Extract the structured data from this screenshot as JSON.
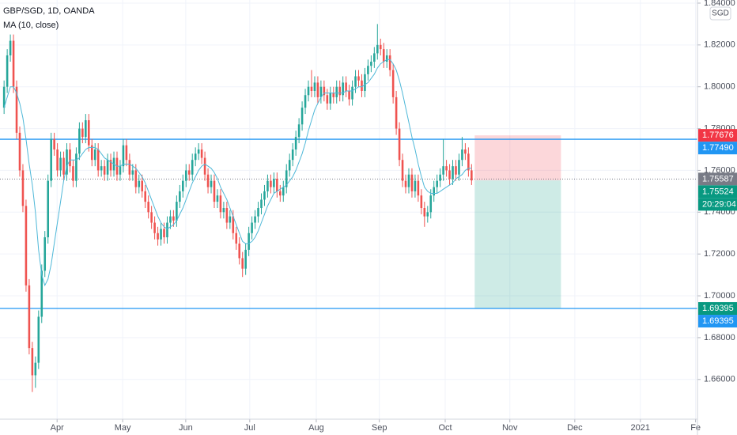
{
  "chart_data": {
    "type": "candlestick",
    "title": "GBP/SGD, 1D, OANDA",
    "indicator": "MA (10, close)",
    "currency": "SGD",
    "up_color": "#26a69a",
    "down_color": "#ef5350",
    "ma_color": "#4fb8d8",
    "grid": true,
    "xlim": [
      -1.3,
      221
    ],
    "ylim": [
      1.641,
      1.8415
    ],
    "yticks": [
      {
        "value": 1.66,
        "label": "1.66000"
      },
      {
        "value": 1.68,
        "label": "1.68000"
      },
      {
        "value": 1.7,
        "label": "1.70000"
      },
      {
        "value": 1.72,
        "label": "1.72000"
      },
      {
        "value": 1.74,
        "label": "1.74000"
      },
      {
        "value": 1.76,
        "label": "1.76000"
      },
      {
        "value": 1.78,
        "label": "1.78000"
      },
      {
        "value": 1.8,
        "label": "1.80000"
      },
      {
        "value": 1.82,
        "label": "1.82000"
      },
      {
        "value": 1.84,
        "label": "1.84000"
      }
    ],
    "xticks": [
      {
        "value": 16.9,
        "label": "Apr"
      },
      {
        "value": 37.8,
        "label": "May"
      },
      {
        "value": 57.9,
        "label": "Jun"
      },
      {
        "value": 78.3,
        "label": "Jul"
      },
      {
        "value": 99.5,
        "label": "Aug"
      },
      {
        "value": 119.6,
        "label": "Sep"
      },
      {
        "value": 140.6,
        "label": "Oct"
      },
      {
        "value": 161.2,
        "label": "Nov"
      },
      {
        "value": 181.9,
        "label": "Dec"
      },
      {
        "value": 202.8,
        "label": "2021"
      },
      {
        "value": 220.4,
        "label": "Fe"
      }
    ],
    "ohlc": [
      [
        1.79,
        1.803,
        1.787,
        1.8
      ],
      [
        1.8,
        1.818,
        1.797,
        1.815
      ],
      [
        1.815,
        1.825,
        1.812,
        1.822
      ],
      [
        1.822,
        1.825,
        1.797,
        1.8
      ],
      [
        1.8,
        1.803,
        1.775,
        1.778
      ],
      [
        1.778,
        1.781,
        1.757,
        1.76
      ],
      [
        1.76,
        1.763,
        1.74,
        1.743
      ],
      [
        1.743,
        1.746,
        1.702,
        1.705
      ],
      [
        1.705,
        1.708,
        1.672,
        1.675
      ],
      [
        1.675,
        1.678,
        1.654,
        1.662
      ],
      [
        1.662,
        1.671,
        1.656,
        1.668
      ],
      [
        1.668,
        1.693,
        1.665,
        1.69
      ],
      [
        1.69,
        1.715,
        1.687,
        1.712
      ],
      [
        1.712,
        1.731,
        1.709,
        1.728
      ],
      [
        1.728,
        1.758,
        1.725,
        1.755
      ],
      [
        1.755,
        1.778,
        1.752,
        1.775
      ],
      [
        1.775,
        1.778,
        1.767,
        1.77
      ],
      [
        1.77,
        1.773,
        1.757,
        1.76
      ],
      [
        1.76,
        1.769,
        1.757,
        1.766
      ],
      [
        1.766,
        1.769,
        1.755,
        1.758
      ],
      [
        1.758,
        1.773,
        1.755,
        1.77
      ],
      [
        1.77,
        1.773,
        1.759,
        1.762
      ],
      [
        1.762,
        1.765,
        1.752,
        1.755
      ],
      [
        1.755,
        1.771,
        1.752,
        1.768
      ],
      [
        1.768,
        1.783,
        1.765,
        1.78
      ],
      [
        1.78,
        1.783,
        1.773,
        1.776
      ],
      [
        1.776,
        1.787,
        1.773,
        1.784
      ],
      [
        1.784,
        1.787,
        1.769,
        1.772
      ],
      [
        1.772,
        1.775,
        1.762,
        1.765
      ],
      [
        1.765,
        1.773,
        1.762,
        1.77
      ],
      [
        1.77,
        1.773,
        1.757,
        1.76
      ],
      [
        1.76,
        1.765,
        1.757,
        1.762
      ],
      [
        1.762,
        1.765,
        1.755,
        1.758
      ],
      [
        1.758,
        1.768,
        1.755,
        1.765
      ],
      [
        1.765,
        1.768,
        1.757,
        1.76
      ],
      [
        1.76,
        1.769,
        1.757,
        1.766
      ],
      [
        1.766,
        1.769,
        1.755,
        1.758
      ],
      [
        1.758,
        1.765,
        1.755,
        1.762
      ],
      [
        1.762,
        1.775,
        1.759,
        1.772
      ],
      [
        1.772,
        1.775,
        1.762,
        1.765
      ],
      [
        1.765,
        1.768,
        1.755,
        1.758
      ],
      [
        1.758,
        1.763,
        1.755,
        1.76
      ],
      [
        1.76,
        1.763,
        1.749,
        1.752
      ],
      [
        1.752,
        1.758,
        1.749,
        1.755
      ],
      [
        1.755,
        1.758,
        1.747,
        1.75
      ],
      [
        1.75,
        1.753,
        1.742,
        1.745
      ],
      [
        1.745,
        1.748,
        1.737,
        1.74
      ],
      [
        1.74,
        1.743,
        1.732,
        1.735
      ],
      [
        1.735,
        1.738,
        1.727,
        1.73
      ],
      [
        1.73,
        1.733,
        1.724,
        1.727
      ],
      [
        1.727,
        1.735,
        1.724,
        1.732
      ],
      [
        1.732,
        1.735,
        1.725,
        1.728
      ],
      [
        1.728,
        1.738,
        1.725,
        1.735
      ],
      [
        1.735,
        1.741,
        1.732,
        1.738
      ],
      [
        1.738,
        1.741,
        1.733,
        1.736
      ],
      [
        1.736,
        1.748,
        1.733,
        1.745
      ],
      [
        1.745,
        1.753,
        1.742,
        1.75
      ],
      [
        1.75,
        1.758,
        1.747,
        1.755
      ],
      [
        1.755,
        1.763,
        1.752,
        1.76
      ],
      [
        1.76,
        1.763,
        1.755,
        1.758
      ],
      [
        1.758,
        1.768,
        1.755,
        1.765
      ],
      [
        1.765,
        1.771,
        1.762,
        1.768
      ],
      [
        1.768,
        1.773,
        1.765,
        1.77
      ],
      [
        1.77,
        1.773,
        1.763,
        1.766
      ],
      [
        1.766,
        1.769,
        1.755,
        1.758
      ],
      [
        1.758,
        1.761,
        1.749,
        1.752
      ],
      [
        1.752,
        1.758,
        1.749,
        1.755
      ],
      [
        1.755,
        1.758,
        1.742,
        1.745
      ],
      [
        1.745,
        1.751,
        1.742,
        1.748
      ],
      [
        1.748,
        1.751,
        1.737,
        1.74
      ],
      [
        1.74,
        1.745,
        1.737,
        1.742
      ],
      [
        1.742,
        1.745,
        1.732,
        1.735
      ],
      [
        1.735,
        1.741,
        1.732,
        1.738
      ],
      [
        1.738,
        1.741,
        1.727,
        1.73
      ],
      [
        1.73,
        1.733,
        1.722,
        1.725
      ],
      [
        1.725,
        1.728,
        1.715,
        1.718
      ],
      [
        1.718,
        1.721,
        1.709,
        1.713
      ],
      [
        1.713,
        1.725,
        1.71,
        1.722
      ],
      [
        1.722,
        1.733,
        1.719,
        1.73
      ],
      [
        1.73,
        1.738,
        1.727,
        1.735
      ],
      [
        1.735,
        1.741,
        1.732,
        1.738
      ],
      [
        1.738,
        1.745,
        1.735,
        1.742
      ],
      [
        1.742,
        1.749,
        1.739,
        1.746
      ],
      [
        1.746,
        1.753,
        1.743,
        1.75
      ],
      [
        1.75,
        1.758,
        1.747,
        1.755
      ],
      [
        1.755,
        1.758,
        1.749,
        1.752
      ],
      [
        1.752,
        1.759,
        1.749,
        1.756
      ],
      [
        1.756,
        1.759,
        1.747,
        1.75
      ],
      [
        1.75,
        1.753,
        1.745,
        1.748
      ],
      [
        1.748,
        1.755,
        1.745,
        1.752
      ],
      [
        1.752,
        1.763,
        1.749,
        1.76
      ],
      [
        1.76,
        1.768,
        1.757,
        1.765
      ],
      [
        1.765,
        1.773,
        1.762,
        1.77
      ],
      [
        1.77,
        1.779,
        1.767,
        1.776
      ],
      [
        1.776,
        1.785,
        1.773,
        1.782
      ],
      [
        1.782,
        1.793,
        1.779,
        1.79
      ],
      [
        1.79,
        1.799,
        1.787,
        1.796
      ],
      [
        1.796,
        1.803,
        1.793,
        1.8
      ],
      [
        1.8,
        1.808,
        1.795,
        1.798
      ],
      [
        1.798,
        1.805,
        1.795,
        1.802
      ],
      [
        1.802,
        1.805,
        1.792,
        1.795
      ],
      [
        1.795,
        1.803,
        1.792,
        1.8
      ],
      [
        1.8,
        1.803,
        1.793,
        1.796
      ],
      [
        1.796,
        1.799,
        1.789,
        1.792
      ],
      [
        1.792,
        1.8,
        1.789,
        1.797
      ],
      [
        1.797,
        1.8,
        1.792,
        1.795
      ],
      [
        1.795,
        1.803,
        1.792,
        1.8
      ],
      [
        1.8,
        1.803,
        1.793,
        1.796
      ],
      [
        1.796,
        1.805,
        1.793,
        1.802
      ],
      [
        1.802,
        1.805,
        1.795,
        1.798
      ],
      [
        1.798,
        1.801,
        1.791,
        1.794
      ],
      [
        1.794,
        1.803,
        1.791,
        1.8
      ],
      [
        1.8,
        1.808,
        1.797,
        1.805
      ],
      [
        1.805,
        1.808,
        1.8,
        1.803
      ],
      [
        1.803,
        1.806,
        1.795,
        1.798
      ],
      [
        1.798,
        1.809,
        1.795,
        1.806
      ],
      [
        1.806,
        1.813,
        1.803,
        1.81
      ],
      [
        1.81,
        1.815,
        1.807,
        1.812
      ],
      [
        1.812,
        1.819,
        1.809,
        1.816
      ],
      [
        1.816,
        1.83,
        1.813,
        1.82
      ],
      [
        1.82,
        1.823,
        1.815,
        1.818
      ],
      [
        1.818,
        1.821,
        1.809,
        1.812
      ],
      [
        1.812,
        1.818,
        1.809,
        1.815
      ],
      [
        1.815,
        1.818,
        1.805,
        1.808
      ],
      [
        1.808,
        1.811,
        1.792,
        1.795
      ],
      [
        1.795,
        1.798,
        1.777,
        1.78
      ],
      [
        1.78,
        1.783,
        1.762,
        1.765
      ],
      [
        1.765,
        1.768,
        1.752,
        1.755
      ],
      [
        1.755,
        1.758,
        1.749,
        1.752
      ],
      [
        1.752,
        1.761,
        1.749,
        1.758
      ],
      [
        1.758,
        1.761,
        1.747,
        1.75
      ],
      [
        1.75,
        1.758,
        1.747,
        1.755
      ],
      [
        1.755,
        1.758,
        1.745,
        1.748
      ],
      [
        1.748,
        1.751,
        1.739,
        1.742
      ],
      [
        1.742,
        1.745,
        1.733,
        1.738
      ],
      [
        1.738,
        1.743,
        1.735,
        1.74
      ],
      [
        1.74,
        1.751,
        1.737,
        1.748
      ],
      [
        1.748,
        1.755,
        1.745,
        1.752
      ],
      [
        1.752,
        1.758,
        1.749,
        1.755
      ],
      [
        1.755,
        1.761,
        1.752,
        1.758
      ],
      [
        1.758,
        1.775,
        1.755,
        1.762
      ],
      [
        1.762,
        1.765,
        1.757,
        1.76
      ],
      [
        1.76,
        1.763,
        1.753,
        1.756
      ],
      [
        1.756,
        1.765,
        1.753,
        1.762
      ],
      [
        1.762,
        1.765,
        1.755,
        1.758
      ],
      [
        1.758,
        1.768,
        1.755,
        1.765
      ],
      [
        1.765,
        1.776,
        1.762,
        1.77
      ],
      [
        1.77,
        1.773,
        1.765,
        1.768
      ],
      [
        1.768,
        1.771,
        1.757,
        1.76
      ],
      [
        1.76,
        1.763,
        1.753,
        1.7552
      ]
    ],
    "ma": [
      1.79,
      1.795,
      1.8,
      1.8,
      1.797,
      1.792,
      1.785,
      1.775,
      1.763,
      1.753,
      1.74,
      1.722,
      1.71,
      1.705,
      1.708,
      1.715,
      1.725,
      1.735,
      1.745,
      1.755,
      1.762,
      1.765,
      1.765,
      1.765,
      1.766,
      1.768,
      1.77,
      1.771,
      1.771,
      1.771,
      1.77,
      1.768,
      1.766,
      1.765,
      1.764,
      1.763,
      1.762,
      1.762,
      1.763,
      1.763,
      1.763,
      1.762,
      1.761,
      1.759,
      1.757,
      1.754,
      1.75,
      1.746,
      1.742,
      1.738,
      1.735,
      1.733,
      1.732,
      1.733,
      1.734,
      1.736,
      1.739,
      1.742,
      1.746,
      1.75,
      1.754,
      1.757,
      1.76,
      1.762,
      1.763,
      1.762,
      1.761,
      1.759,
      1.756,
      1.752,
      1.749,
      1.746,
      1.742,
      1.738,
      1.734,
      1.73,
      1.726,
      1.725,
      1.725,
      1.726,
      1.728,
      1.731,
      1.735,
      1.739,
      1.743,
      1.746,
      1.749,
      1.75,
      1.751,
      1.752,
      1.753,
      1.755,
      1.757,
      1.76,
      1.764,
      1.768,
      1.773,
      1.779,
      1.784,
      1.789,
      1.792,
      1.795,
      1.797,
      1.797,
      1.797,
      1.797,
      1.797,
      1.797,
      1.797,
      1.798,
      1.798,
      1.798,
      1.799,
      1.8,
      1.8,
      1.801,
      1.802,
      1.804,
      1.806,
      1.809,
      1.811,
      1.812,
      1.813,
      1.813,
      1.811,
      1.808,
      1.803,
      1.797,
      1.79,
      1.783,
      1.776,
      1.77,
      1.763,
      1.757,
      1.752,
      1.75,
      1.749,
      1.749,
      1.749,
      1.75,
      1.751,
      1.752,
      1.753,
      1.754,
      1.756,
      1.757,
      1.758,
      1.76,
      1.761,
      1.761
    ],
    "hlines": [
      1.7749,
      1.69395
    ],
    "last_price": 1.75587,
    "position": {
      "from": 150,
      "to": 177.5,
      "stop": 1.77676,
      "entry": 1.75524,
      "target": 1.69395
    },
    "price_labels": [
      {
        "value": 1.77676,
        "color": "#f23645"
      },
      {
        "value": 1.7749,
        "label": "1.77490",
        "color": "#2196f3"
      },
      {
        "value": 1.75587,
        "color": "#787b86"
      },
      {
        "value": 1.75524,
        "color": "#089981"
      },
      {
        "value": 1.69395,
        "color": "#089981"
      },
      {
        "value": 1.69395,
        "color": "#2196f3"
      }
    ],
    "countdown": "20:29:04"
  }
}
